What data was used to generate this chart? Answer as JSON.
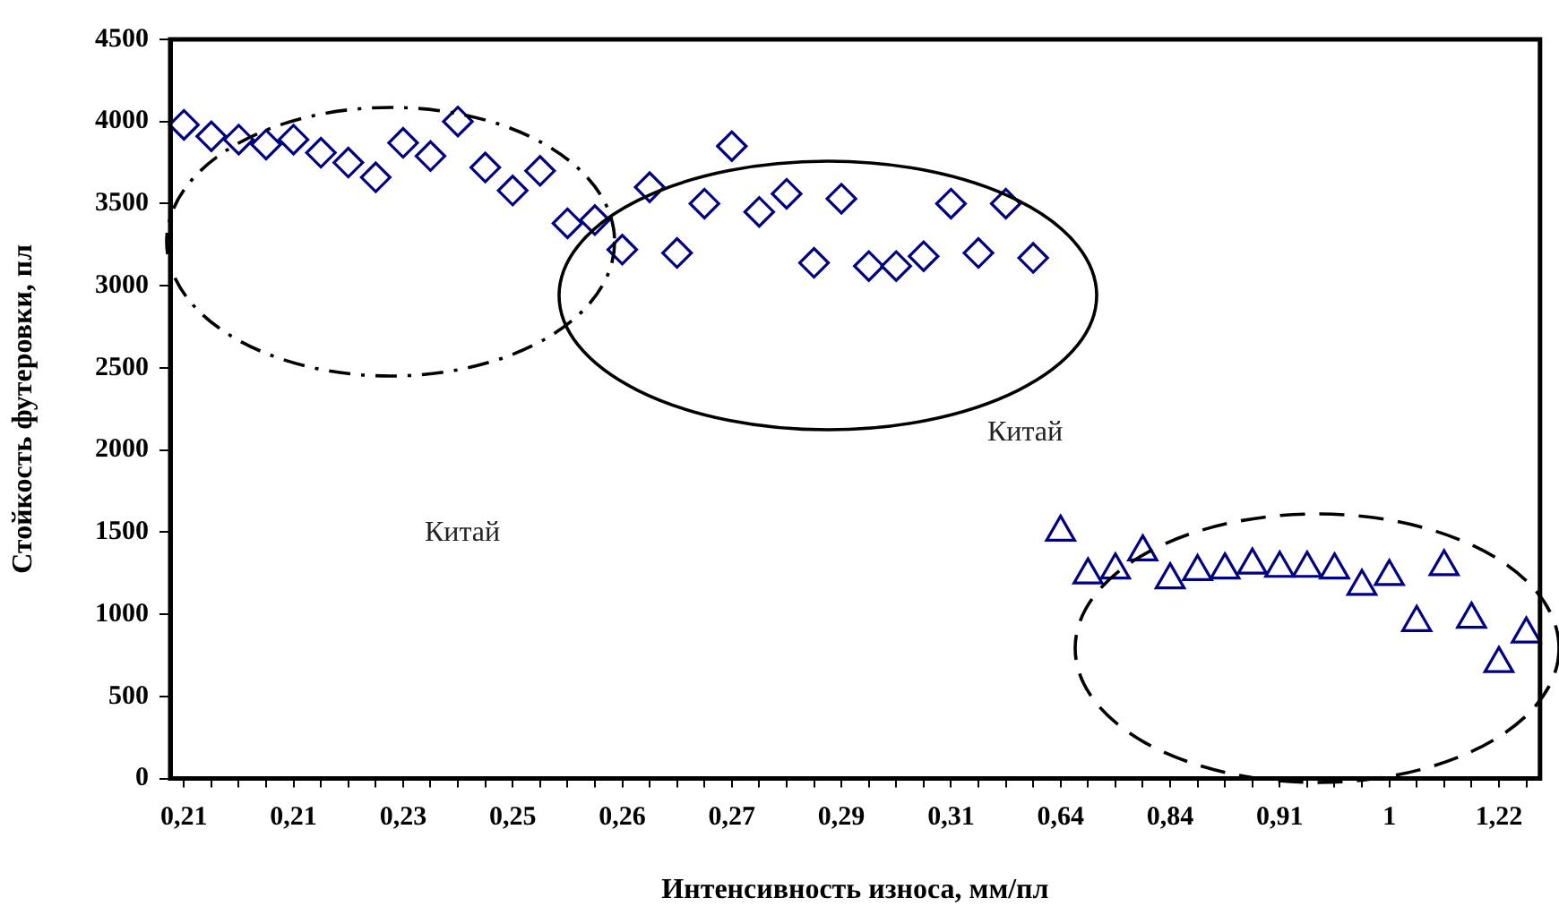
{
  "chart_data": {
    "type": "scatter",
    "xlabel": "Интенсивность износа, мм/пл",
    "ylabel": "Стойкость футеровки, пл",
    "categories": [
      "0,21",
      null,
      null,
      null,
      "0,21",
      null,
      null,
      null,
      "0,23",
      null,
      null,
      null,
      "0,25",
      null,
      null,
      null,
      "0,26",
      null,
      null,
      null,
      "0,27",
      null,
      null,
      null,
      "0,29",
      null,
      null,
      null,
      "0,31",
      null,
      null,
      null,
      "0,64",
      null,
      null,
      null,
      "0,84",
      null,
      null,
      null,
      "0,91",
      null,
      null,
      null,
      "1",
      null,
      null,
      null,
      "1,22",
      null
    ],
    "series": [
      {
        "color": "#000080",
        "marker": "diamond",
        "values": [
          3980,
          3910,
          3890,
          3860,
          3890,
          3810,
          3750,
          3660,
          3870,
          3790,
          4000,
          3720,
          3580,
          3700,
          3380,
          3400,
          3220,
          3600,
          3200,
          3500,
          3850,
          3450,
          3560,
          3140,
          3530,
          3120,
          3120,
          3180,
          3500,
          3200,
          3500,
          3170,
          null,
          null,
          null,
          null,
          null,
          null,
          null,
          null,
          null,
          null,
          null,
          null,
          null,
          null,
          null,
          null,
          null,
          null
        ]
      },
      {
        "color": "#000080",
        "marker": "triangle",
        "values": [
          null,
          null,
          null,
          null,
          null,
          null,
          null,
          null,
          null,
          null,
          null,
          null,
          null,
          null,
          null,
          null,
          null,
          null,
          null,
          null,
          null,
          null,
          null,
          null,
          null,
          null,
          null,
          null,
          null,
          null,
          null,
          null,
          1500,
          1240,
          1270,
          1380,
          1210,
          1260,
          1270,
          1300,
          1280,
          1280,
          1270,
          1170,
          1230,
          950,
          1290,
          970,
          700,
          880
        ]
      }
    ],
    "ylim": [
      0,
      4500
    ],
    "yticks": [
      0,
      500,
      1000,
      1500,
      2000,
      2500,
      3000,
      3500,
      4000,
      4500
    ],
    "grid": false,
    "legend": false,
    "annotations": [
      "Китай",
      "Китай"
    ]
  }
}
